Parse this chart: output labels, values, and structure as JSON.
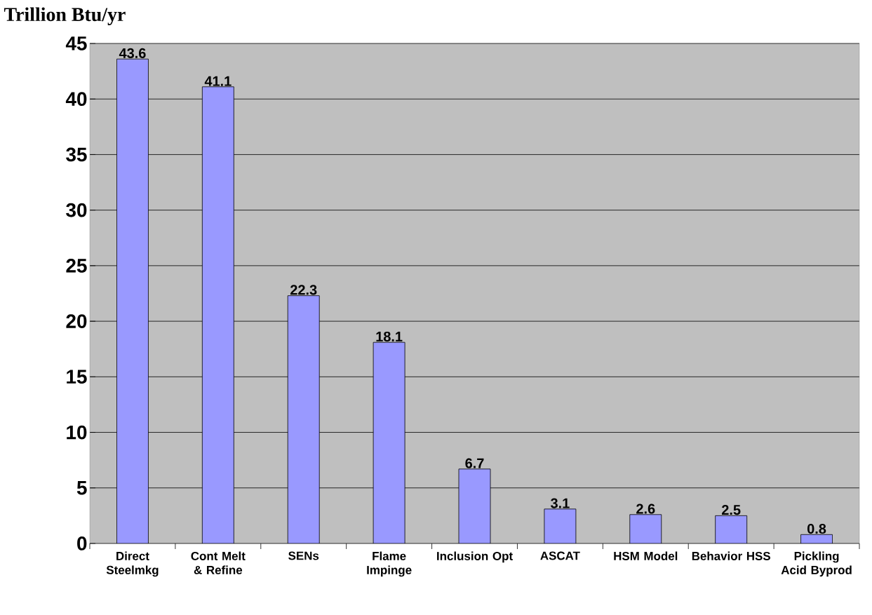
{
  "chart_data": {
    "type": "bar",
    "ylabel": "Trillion Btu/yr",
    "categories": [
      "Direct Steelmkg",
      "Cont Melt & Refine",
      "SENs",
      "Flame Impinge",
      "Inclusion Opt",
      "ASCAT",
      "HSM Model",
      "Behavior HSS",
      "Pickling Acid Byprod"
    ],
    "values": [
      43.6,
      41.1,
      22.3,
      18.1,
      6.7,
      3.1,
      2.6,
      2.5,
      0.8
    ],
    "color": "#9999ff",
    "ylim": [
      0,
      45
    ],
    "yticks": [
      0,
      5,
      10,
      15,
      20,
      25,
      30,
      35,
      40,
      45
    ],
    "grid": "y",
    "data_labels": true
  }
}
